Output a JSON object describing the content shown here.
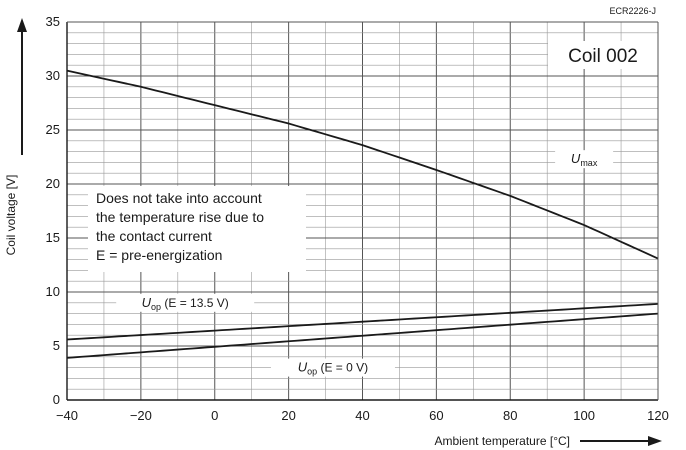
{
  "chart_data": {
    "type": "line",
    "code": "ECR2226-J",
    "coil_label": "Coil 002",
    "ylabel": "Coil voltage [V]",
    "xlabel": "Ambient temperature [°C]",
    "xlim": [
      -40,
      120
    ],
    "ylim": [
      0,
      35
    ],
    "x_ticks": [
      "−40",
      "−20",
      "0",
      "20",
      "40",
      "60",
      "80",
      "100",
      "120"
    ],
    "y_ticks": [
      "0",
      "5",
      "10",
      "15",
      "20",
      "25",
      "30",
      "35"
    ],
    "grid": true,
    "note_lines": [
      "Does not take into account",
      "the temperature rise due to",
      "the contact current",
      "E = pre-energization"
    ],
    "series": [
      {
        "name": "Umax",
        "label_main": "U",
        "label_sub": "max",
        "label_suffix": "",
        "x": [
          -40,
          -20,
          0,
          20,
          40,
          60,
          80,
          100,
          120
        ],
        "values": [
          30.5,
          29.0,
          27.3,
          25.6,
          23.6,
          21.3,
          18.9,
          16.2,
          13.1
        ]
      },
      {
        "name": "Uop (E = 13.5 V)",
        "label_main": "U",
        "label_sub": "op",
        "label_suffix": " (E = 13.5 V)",
        "x": [
          -40,
          120
        ],
        "values": [
          5.6,
          8.9
        ]
      },
      {
        "name": "Uop (E = 0 V)",
        "label_main": "U",
        "label_sub": "op",
        "label_suffix": " (E = 0 V)",
        "x": [
          -40,
          120
        ],
        "values": [
          3.9,
          8.0
        ]
      }
    ]
  }
}
